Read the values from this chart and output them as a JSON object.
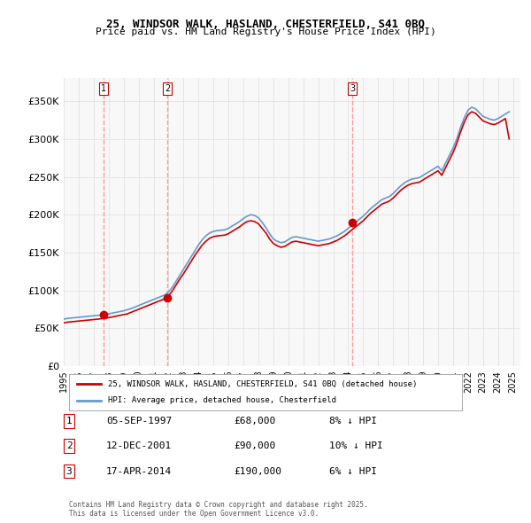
{
  "title": "25, WINDSOR WALK, HASLAND, CHESTERFIELD, S41 0BQ",
  "subtitle": "Price paid vs. HM Land Registry's House Price Index (HPI)",
  "legend_label_red": "25, WINDSOR WALK, HASLAND, CHESTERFIELD, S41 0BQ (detached house)",
  "legend_label_blue": "HPI: Average price, detached house, Chesterfield",
  "footer": "Contains HM Land Registry data © Crown copyright and database right 2025.\nThis data is licensed under the Open Government Licence v3.0.",
  "transactions": [
    {
      "label": "1",
      "date": "05-SEP-1997",
      "price": 68000,
      "pct": "8%",
      "dir": "↓",
      "year": 1997.67
    },
    {
      "label": "2",
      "date": "12-DEC-2001",
      "price": 90000,
      "pct": "10%",
      "dir": "↓",
      "year": 2001.94
    },
    {
      "label": "3",
      "date": "17-APR-2014",
      "price": 190000,
      "pct": "6%",
      "dir": "↓",
      "year": 2014.29
    }
  ],
  "hpi_x": [
    1995.0,
    1995.25,
    1995.5,
    1995.75,
    1996.0,
    1996.25,
    1996.5,
    1996.75,
    1997.0,
    1997.25,
    1997.5,
    1997.75,
    1998.0,
    1998.25,
    1998.5,
    1998.75,
    1999.0,
    1999.25,
    1999.5,
    1999.75,
    2000.0,
    2000.25,
    2000.5,
    2000.75,
    2001.0,
    2001.25,
    2001.5,
    2001.75,
    2002.0,
    2002.25,
    2002.5,
    2002.75,
    2003.0,
    2003.25,
    2003.5,
    2003.75,
    2004.0,
    2004.25,
    2004.5,
    2004.75,
    2005.0,
    2005.25,
    2005.5,
    2005.75,
    2006.0,
    2006.25,
    2006.5,
    2006.75,
    2007.0,
    2007.25,
    2007.5,
    2007.75,
    2008.0,
    2008.25,
    2008.5,
    2008.75,
    2009.0,
    2009.25,
    2009.5,
    2009.75,
    2010.0,
    2010.25,
    2010.5,
    2010.75,
    2011.0,
    2011.25,
    2011.5,
    2011.75,
    2012.0,
    2012.25,
    2012.5,
    2012.75,
    2013.0,
    2013.25,
    2013.5,
    2013.75,
    2014.0,
    2014.25,
    2014.5,
    2014.75,
    2015.0,
    2015.25,
    2015.5,
    2015.75,
    2016.0,
    2016.25,
    2016.5,
    2016.75,
    2017.0,
    2017.25,
    2017.5,
    2017.75,
    2018.0,
    2018.25,
    2018.5,
    2018.75,
    2019.0,
    2019.25,
    2019.5,
    2019.75,
    2020.0,
    2020.25,
    2020.5,
    2020.75,
    2021.0,
    2021.25,
    2021.5,
    2021.75,
    2022.0,
    2022.25,
    2022.5,
    2022.75,
    2023.0,
    2023.25,
    2023.5,
    2023.75,
    2024.0,
    2024.25,
    2024.5,
    2024.75
  ],
  "hpi_y": [
    62000,
    63000,
    63500,
    64000,
    64500,
    65000,
    65500,
    66000,
    66500,
    67000,
    67500,
    68000,
    69000,
    70000,
    71000,
    72000,
    73000,
    74500,
    76000,
    78000,
    80000,
    82000,
    84000,
    86000,
    88000,
    90000,
    92000,
    94000,
    98000,
    104000,
    112000,
    120000,
    128000,
    136000,
    144000,
    152000,
    160000,
    167000,
    172000,
    176000,
    178000,
    179000,
    179500,
    180000,
    182000,
    185000,
    188000,
    191000,
    195000,
    198000,
    200000,
    199000,
    196000,
    190000,
    183000,
    175000,
    168000,
    165000,
    163000,
    164000,
    167000,
    170000,
    171000,
    170000,
    169000,
    168000,
    167000,
    166000,
    165000,
    166000,
    167000,
    168000,
    170000,
    172000,
    175000,
    178000,
    182000,
    186000,
    190000,
    194000,
    198000,
    203000,
    208000,
    212000,
    216000,
    220000,
    222000,
    224000,
    228000,
    233000,
    238000,
    242000,
    245000,
    247000,
    248000,
    249000,
    252000,
    255000,
    258000,
    261000,
    264000,
    258000,
    268000,
    278000,
    288000,
    300000,
    315000,
    328000,
    338000,
    342000,
    340000,
    335000,
    330000,
    328000,
    326000,
    325000,
    327000,
    330000,
    333000,
    336000
  ],
  "red_x": [
    1995.0,
    1995.25,
    1995.5,
    1995.75,
    1996.0,
    1996.25,
    1996.5,
    1996.75,
    1997.0,
    1997.25,
    1997.5,
    1997.75,
    1998.0,
    1998.25,
    1998.5,
    1998.75,
    1999.0,
    1999.25,
    1999.5,
    1999.75,
    2000.0,
    2000.25,
    2000.5,
    2000.75,
    2001.0,
    2001.25,
    2001.5,
    2001.75,
    2002.0,
    2002.25,
    2002.5,
    2002.75,
    2003.0,
    2003.25,
    2003.5,
    2003.75,
    2004.0,
    2004.25,
    2004.5,
    2004.75,
    2005.0,
    2005.25,
    2005.5,
    2005.75,
    2006.0,
    2006.25,
    2006.5,
    2006.75,
    2007.0,
    2007.25,
    2007.5,
    2007.75,
    2008.0,
    2008.25,
    2008.5,
    2008.75,
    2009.0,
    2009.25,
    2009.5,
    2009.75,
    2010.0,
    2010.25,
    2010.5,
    2010.75,
    2011.0,
    2011.25,
    2011.5,
    2011.75,
    2012.0,
    2012.25,
    2012.5,
    2012.75,
    2013.0,
    2013.25,
    2013.5,
    2013.75,
    2014.0,
    2014.25,
    2014.5,
    2014.75,
    2015.0,
    2015.25,
    2015.5,
    2015.75,
    2016.0,
    2016.25,
    2016.5,
    2016.75,
    2017.0,
    2017.25,
    2017.5,
    2017.75,
    2018.0,
    2018.25,
    2018.5,
    2018.75,
    2019.0,
    2019.25,
    2019.5,
    2019.75,
    2020.0,
    2020.25,
    2020.5,
    2020.75,
    2021.0,
    2021.25,
    2021.5,
    2021.75,
    2022.0,
    2022.25,
    2022.5,
    2022.75,
    2023.0,
    2023.25,
    2023.5,
    2023.75,
    2024.0,
    2024.25,
    2024.5,
    2024.75
  ],
  "red_y": [
    57000,
    58000,
    58500,
    59000,
    59500,
    60000,
    60500,
    61000,
    61500,
    62000,
    62500,
    63000,
    64000,
    65000,
    66000,
    67000,
    68000,
    69000,
    71000,
    73000,
    75000,
    77000,
    79000,
    81000,
    83000,
    85000,
    87000,
    89000,
    93000,
    99000,
    107000,
    115000,
    122000,
    130000,
    138000,
    146000,
    153000,
    160000,
    165000,
    169000,
    171000,
    172000,
    172500,
    173000,
    175000,
    178000,
    181000,
    184000,
    188000,
    191000,
    192000,
    191000,
    188000,
    182000,
    176000,
    168000,
    162000,
    159000,
    157000,
    158000,
    161000,
    164000,
    165000,
    164000,
    163000,
    162000,
    161000,
    160000,
    159000,
    160000,
    161000,
    162000,
    164000,
    166000,
    169000,
    172000,
    176000,
    180000,
    184000,
    188000,
    192000,
    197000,
    202000,
    206000,
    210000,
    214000,
    216000,
    218000,
    222000,
    227000,
    232000,
    236000,
    239000,
    241000,
    242000,
    243000,
    246000,
    249000,
    252000,
    255000,
    258000,
    252000,
    262000,
    272000,
    282000,
    294000,
    309000,
    322000,
    332000,
    336000,
    334000,
    329000,
    324000,
    322000,
    320000,
    319000,
    321000,
    324000,
    327000,
    300000
  ],
  "ylim": [
    0,
    380000
  ],
  "xlim": [
    1995.0,
    2025.5
  ],
  "yticks": [
    0,
    50000,
    100000,
    150000,
    200000,
    250000,
    300000,
    350000
  ],
  "ytick_labels": [
    "£0",
    "£50K",
    "£100K",
    "£150K",
    "£200K",
    "£250K",
    "£300K",
    "£350K"
  ],
  "xticks": [
    1995,
    1996,
    1997,
    1998,
    1999,
    2000,
    2001,
    2002,
    2003,
    2004,
    2005,
    2006,
    2007,
    2008,
    2009,
    2010,
    2011,
    2012,
    2013,
    2014,
    2015,
    2016,
    2017,
    2018,
    2019,
    2020,
    2021,
    2022,
    2023,
    2024,
    2025
  ],
  "bg_color": "#f8f8f8",
  "grid_color": "#dddddd",
  "red_color": "#cc0000",
  "blue_color": "#6699cc",
  "marker_color_red": "#cc0000",
  "dashed_line_color": "#ff9999"
}
